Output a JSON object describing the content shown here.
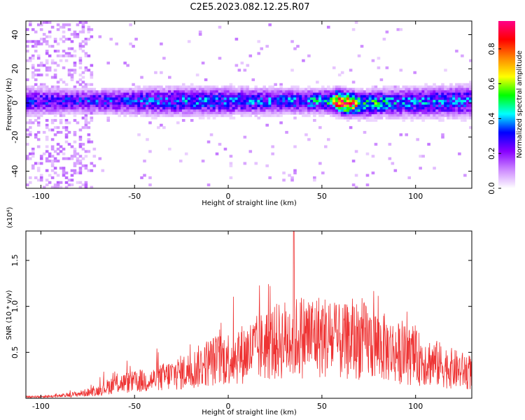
{
  "title": "C2E5.2023.082.12.25.R07",
  "chart_data": [
    {
      "type": "heatmap",
      "xlabel": "Height of straight line (km)",
      "ylabel": "Frequency (Hz)",
      "xlim": [
        -108,
        130
      ],
      "ylim": [
        -50,
        48
      ],
      "xticks": [
        -100,
        -50,
        0,
        50,
        100
      ],
      "yticks": [
        -40,
        -20,
        0,
        20,
        40
      ],
      "colorbar": {
        "label": "Normalized spectral amplitude",
        "range": [
          0,
          0.96
        ],
        "ticks": [
          0.0,
          0.2,
          0.4,
          0.6,
          0.8
        ],
        "colormap": [
          "#ffffff",
          "#cc88ff",
          "#8800ff",
          "#0000ff",
          "#00ffff",
          "#00ff00",
          "#ffff00",
          "#ff8800",
          "#ff0000",
          "#ff0088"
        ]
      },
      "band": {
        "center_hz": [
          [
            -108,
            1
          ],
          [
            50,
            1
          ],
          [
            58,
            1
          ],
          [
            62,
            0
          ],
          [
            70,
            -1
          ],
          [
            80,
            0
          ],
          [
            130,
            1
          ]
        ],
        "halfwidth_hz": [
          [
            -108,
            6
          ],
          [
            -75,
            5
          ],
          [
            -40,
            6
          ],
          [
            0,
            6
          ],
          [
            50,
            5
          ],
          [
            130,
            7
          ]
        ],
        "peak_amplitude": [
          [
            -108,
            0.3
          ],
          [
            -60,
            0.32
          ],
          [
            -45,
            0.34
          ],
          [
            -20,
            0.38
          ],
          [
            0,
            0.35
          ],
          [
            40,
            0.38
          ],
          [
            55,
            0.5
          ],
          [
            58,
            0.92
          ],
          [
            65,
            0.95
          ],
          [
            70,
            0.55
          ],
          [
            90,
            0.4
          ],
          [
            130,
            0.35
          ]
        ],
        "noise_region_km": [
          -108,
          -72
        ]
      }
    },
    {
      "type": "line",
      "xlabel": "Height of straight line (km)",
      "ylabel": "SNR (10 * v/v)",
      "y_multiplier": "(x10⁴)",
      "xlim": [
        -108,
        130
      ],
      "ylim": [
        0,
        1.82
      ],
      "xticks": [
        -100,
        -50,
        0,
        50,
        100
      ],
      "yticks": [
        0.5,
        1.0,
        1.5
      ],
      "color": "#ee3333",
      "envelope": [
        [
          -108,
          0.02
        ],
        [
          -90,
          0.03
        ],
        [
          -80,
          0.06
        ],
        [
          -70,
          0.1
        ],
        [
          -60,
          0.2
        ],
        [
          -50,
          0.22
        ],
        [
          -40,
          0.25
        ],
        [
          -30,
          0.32
        ],
        [
          -20,
          0.38
        ],
        [
          -10,
          0.5
        ],
        [
          0,
          0.55
        ],
        [
          10,
          0.62
        ],
        [
          20,
          0.72
        ],
        [
          30,
          0.8
        ],
        [
          40,
          0.85
        ],
        [
          50,
          0.85
        ],
        [
          60,
          0.75
        ],
        [
          70,
          0.8
        ],
        [
          80,
          0.72
        ],
        [
          90,
          0.62
        ],
        [
          100,
          0.55
        ],
        [
          110,
          0.48
        ],
        [
          120,
          0.4
        ],
        [
          130,
          0.35
        ]
      ],
      "peak": [
        35,
        1.82
      ]
    }
  ]
}
